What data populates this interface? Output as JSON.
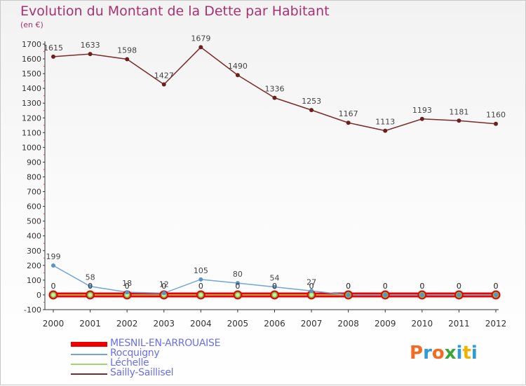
{
  "title": "Evolution du Montant de la Dette par Habitant",
  "subtitle": "(en €)",
  "logo": {
    "text": "Proxiti",
    "colors": [
      "#f26b21",
      "#2f9ad6",
      "#f26b21",
      "#3aa63a",
      "#2f9ad6",
      "#f0b400",
      "#2f9ad6"
    ]
  },
  "chart_data": {
    "type": "line",
    "title": "Evolution du Montant de la Dette par Habitant",
    "ylabel": "(en €)",
    "xlabel": "",
    "x": [
      "2000",
      "2001",
      "2002",
      "2003",
      "2004",
      "2005",
      "2006",
      "2007",
      "2008",
      "2009",
      "2010",
      "2011",
      "2012"
    ],
    "ylim": [
      -100,
      1700
    ],
    "yticks": [
      -100,
      0,
      100,
      200,
      300,
      400,
      500,
      600,
      700,
      800,
      900,
      1000,
      1100,
      1200,
      1300,
      1400,
      1500,
      1600,
      1700
    ],
    "grid": false,
    "legend_position": "bottom-left",
    "series": [
      {
        "name": "MESNIL-EN-ARROUAISE",
        "color": "#ee0000",
        "marker": "#3aa63a",
        "values": [
          0,
          0,
          0,
          0,
          0,
          0,
          0,
          0,
          0,
          0,
          0,
          0,
          0
        ],
        "labels": [
          "0",
          "0",
          "0",
          "0",
          "0",
          "0",
          "0",
          "0",
          "0",
          "0",
          "0",
          "0",
          "0"
        ]
      },
      {
        "name": "Rocquigny",
        "color": "#6ea6dc",
        "marker": "#5b93c9",
        "values": [
          199,
          58,
          18,
          12,
          105,
          80,
          54,
          27,
          0,
          0,
          0,
          0,
          0
        ],
        "labels": [
          "199",
          "58",
          "18",
          "12",
          "105",
          "80",
          "54",
          "27",
          "0",
          "0",
          "0",
          "0",
          "0"
        ]
      },
      {
        "name": "Léchelle",
        "color": "#9bd86c",
        "marker": "#7bbd4f",
        "values": [
          0,
          0,
          0,
          0,
          0,
          0,
          0,
          0,
          0,
          0,
          0,
          0,
          0
        ],
        "labels": [
          "0",
          "0",
          "0",
          "0",
          "0",
          "0",
          "0",
          "0",
          "0",
          "0",
          "0",
          "0",
          "0"
        ]
      },
      {
        "name": "Sailly-Saillisel",
        "color": "#7a2a2a",
        "marker": "#6b2020",
        "values": [
          1615,
          1633,
          1598,
          1427,
          1679,
          1490,
          1336,
          1253,
          1167,
          1113,
          1193,
          1181,
          1160
        ],
        "labels": [
          "1615",
          "1633",
          "1598",
          "1427",
          "1679",
          "1490",
          "1336",
          "1253",
          "1167",
          "1113",
          "1193",
          "1181",
          "1160"
        ]
      }
    ]
  }
}
